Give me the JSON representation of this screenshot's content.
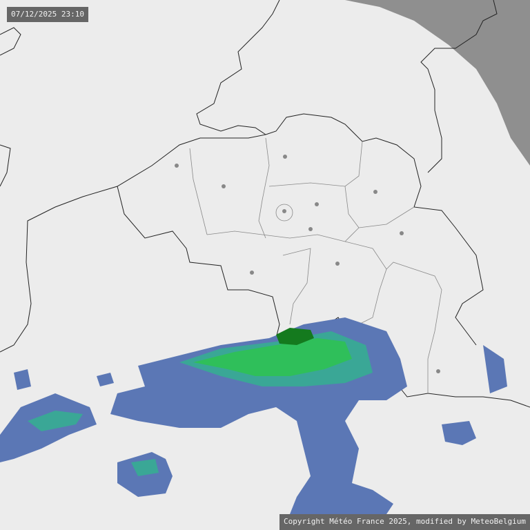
{
  "timestamp": "07/12/2025 23:10",
  "copyright": "Copyright Météo France 2025, modified by MeteoBelgium",
  "map": {
    "type": "weather radar precipitation",
    "colors": {
      "background": "#ececec",
      "out_of_range": "#8f8f8f",
      "borders": "#222222",
      "province_borders": "#888888",
      "city_marker": "#888888",
      "rain_light": "#5b77b5",
      "rain_moderate": "#3aa796",
      "rain_heavy": "#2fbf5a",
      "rain_very_heavy": "#147a1e"
    }
  }
}
